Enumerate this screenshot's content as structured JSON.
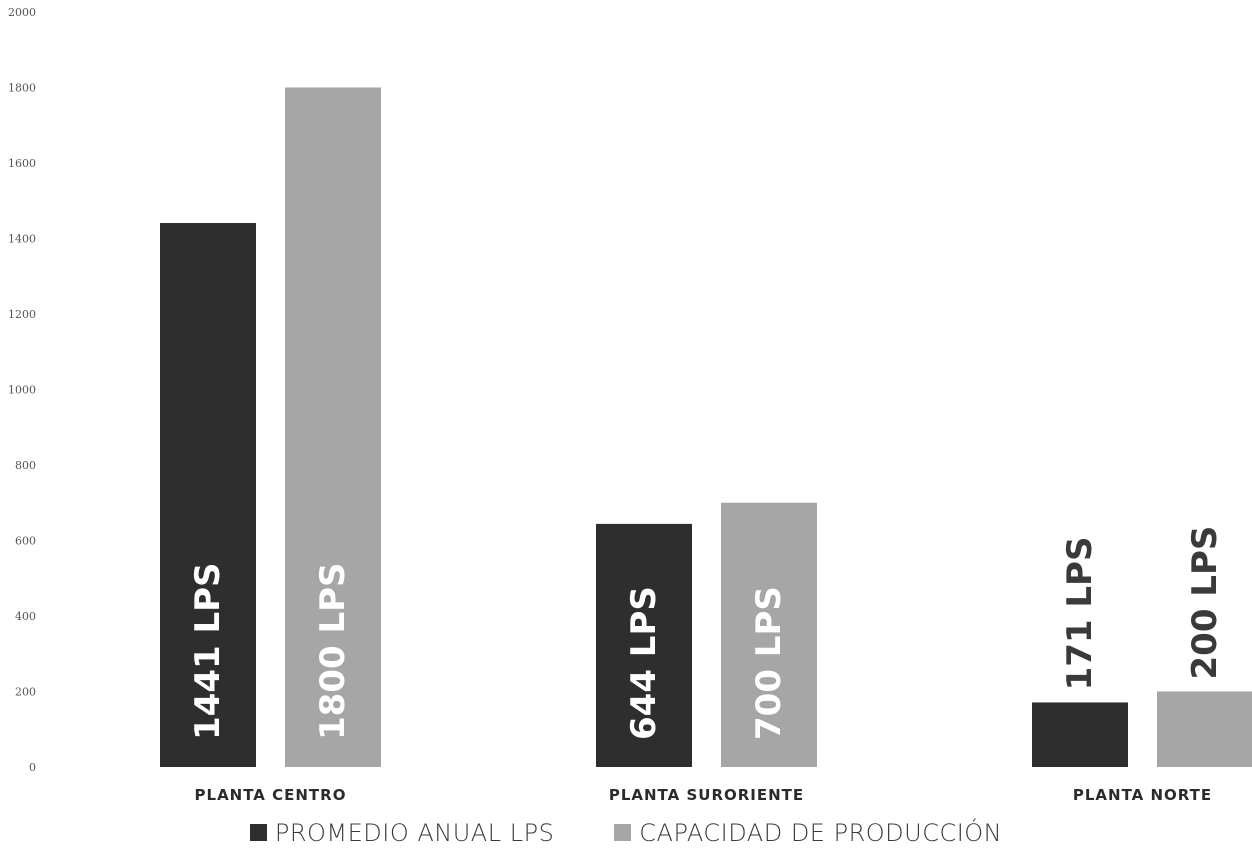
{
  "chart_data": {
    "type": "bar",
    "categories": [
      "PLANTA CENTRO",
      "PLANTA SURORIENTE",
      "PLANTA NORTE"
    ],
    "series": [
      {
        "name": "PROMEDIO ANUAL LPS",
        "values": [
          1441,
          644,
          171
        ],
        "labels": [
          "1441 LPS",
          "644 LPS",
          "171 LPS"
        ]
      },
      {
        "name": "CAPACIDAD DE PRODUCCIÓN",
        "values": [
          1800,
          700,
          200
        ],
        "labels": [
          "1800 LPS",
          "700 LPS",
          "200 LPS"
        ]
      }
    ],
    "ylim": [
      0,
      2000
    ],
    "yticks": [
      "0",
      "200",
      "400",
      "600",
      "800",
      "1000",
      "1200",
      "1400",
      "1600",
      "1800",
      "2000"
    ],
    "title": "",
    "xlabel": "",
    "ylabel": "",
    "grid": false,
    "legend_position": "bottom",
    "colors": [
      "#2e2e2e",
      "#a6a6a6"
    ]
  }
}
